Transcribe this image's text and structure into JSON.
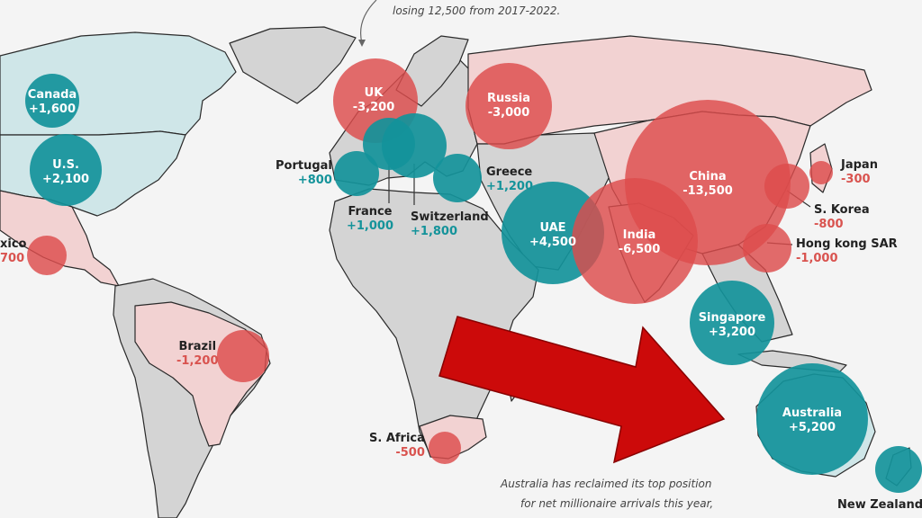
{
  "colors": {
    "ocean": "#f4f4f4",
    "land": "#d4d4d4",
    "land_gain": "#cfe6e8",
    "land_loss": "#f2d2d2",
    "gain": "#14939a",
    "loss": "#dd4c4c",
    "arrow": "#cc0a0a"
  },
  "annotations": {
    "top": "losing 12,500 from 2017-2022.",
    "bottom_line1": "Australia has reclaimed its top position",
    "bottom_line2": "for net millionaire arrivals this year,"
  },
  "bubbles": [
    {
      "id": "canada",
      "name": "Canada",
      "value": "+1,600",
      "net": 1600
    },
    {
      "id": "us",
      "name": "U.S.",
      "value": "+2,100",
      "net": 2100
    },
    {
      "id": "mexico",
      "name": "xico",
      "value": "700",
      "net": -700
    },
    {
      "id": "uk",
      "name": "UK",
      "value": "-3,200",
      "net": -3200
    },
    {
      "id": "russia",
      "name": "Russia",
      "value": "-3,000",
      "net": -3000
    },
    {
      "id": "portugal",
      "name": "Portugal",
      "value": "+800",
      "net": 800
    },
    {
      "id": "france",
      "name": "France",
      "value": "+1,000",
      "net": 1000
    },
    {
      "id": "switzerland",
      "name": "Switzerland",
      "value": "+1,800",
      "net": 1800
    },
    {
      "id": "greece",
      "name": "Greece",
      "value": "+1,200",
      "net": 1200
    },
    {
      "id": "uae",
      "name": "UAE",
      "value": "+4,500",
      "net": 4500
    },
    {
      "id": "india",
      "name": "India",
      "value": "-6,500",
      "net": -6500
    },
    {
      "id": "china",
      "name": "China",
      "value": "-13,500",
      "net": -13500
    },
    {
      "id": "japan",
      "name": "Japan",
      "value": "-300",
      "net": -300
    },
    {
      "id": "skorea",
      "name": "S. Korea",
      "value": "-800",
      "net": -800
    },
    {
      "id": "hongkong",
      "name": "Hong kong SAR",
      "value": "-1,000",
      "net": -1000
    },
    {
      "id": "singapore",
      "name": "Singapore",
      "value": "+3,200",
      "net": 3200
    },
    {
      "id": "australia",
      "name": "Australia",
      "value": "+5,200",
      "net": 5200
    },
    {
      "id": "newzealand",
      "name": "New Zealand",
      "value": "",
      "net": 700
    },
    {
      "id": "brazil",
      "name": "Brazil",
      "value": "-1,200",
      "net": -1200
    },
    {
      "id": "safrica",
      "name": "S. Africa",
      "value": "-500",
      "net": -500
    }
  ]
}
